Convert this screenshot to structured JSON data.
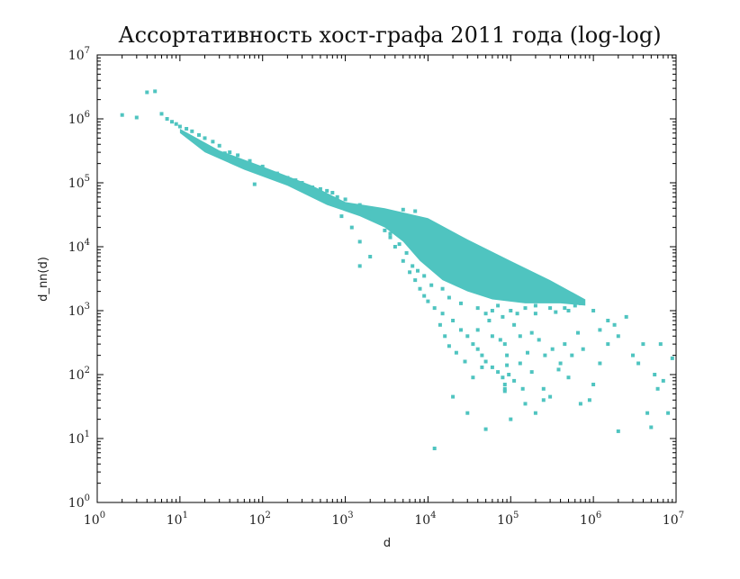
{
  "chart_data": {
    "type": "scatter",
    "title": "Ассортативность хост-графа 2011 года (log-log)",
    "xlabel": "d",
    "ylabel": "d_nn(d)",
    "xscale": "log",
    "yscale": "log",
    "xlim": [
      1,
      10000000
    ],
    "ylim": [
      1,
      10000000
    ],
    "grid": false,
    "x_ticks": [
      {
        "base": "10",
        "exp": "0",
        "value": 1
      },
      {
        "base": "10",
        "exp": "1",
        "value": 10
      },
      {
        "base": "10",
        "exp": "2",
        "value": 100
      },
      {
        "base": "10",
        "exp": "3",
        "value": 1000
      },
      {
        "base": "10",
        "exp": "4",
        "value": 10000
      },
      {
        "base": "10",
        "exp": "5",
        "value": 100000
      },
      {
        "base": "10",
        "exp": "6",
        "value": 1000000
      },
      {
        "base": "10",
        "exp": "7",
        "value": 10000000
      }
    ],
    "y_ticks": [
      {
        "base": "10",
        "exp": "0",
        "value": 1
      },
      {
        "base": "10",
        "exp": "1",
        "value": 10
      },
      {
        "base": "10",
        "exp": "2",
        "value": 100
      },
      {
        "base": "10",
        "exp": "3",
        "value": 1000
      },
      {
        "base": "10",
        "exp": "4",
        "value": 10000
      },
      {
        "base": "10",
        "exp": "5",
        "value": 100000
      },
      {
        "base": "10",
        "exp": "6",
        "value": 1000000
      },
      {
        "base": "10",
        "exp": "7",
        "value": 10000000
      }
    ],
    "color": "#4fc4c0",
    "dense_region": {
      "upper_edge": [
        [
          10,
          700000
        ],
        [
          30,
          320000
        ],
        [
          100,
          180000
        ],
        [
          400,
          90000
        ],
        [
          1000,
          50000
        ],
        [
          3000,
          40000
        ],
        [
          10000,
          28000
        ],
        [
          30000,
          13000
        ],
        [
          100000,
          6000
        ],
        [
          300000,
          3000
        ],
        [
          800000,
          1500
        ]
      ],
      "lower_edge": [
        [
          800000,
          1200
        ],
        [
          400000,
          1300
        ],
        [
          150000,
          1300
        ],
        [
          60000,
          1500
        ],
        [
          30000,
          2000
        ],
        [
          15000,
          3000
        ],
        [
          8000,
          6000
        ],
        [
          5000,
          12000
        ],
        [
          3000,
          20000
        ],
        [
          1500,
          30000
        ],
        [
          600,
          45000
        ],
        [
          200,
          90000
        ],
        [
          60,
          160000
        ],
        [
          20,
          300000
        ],
        [
          10,
          600000
        ]
      ]
    },
    "points": [
      [
        2,
        1150000
      ],
      [
        3,
        1050000
      ],
      [
        4,
        2600000
      ],
      [
        5,
        2700000
      ],
      [
        6,
        1200000
      ],
      [
        7,
        1000000
      ],
      [
        8,
        900000
      ],
      [
        9,
        830000
      ],
      [
        10,
        760000
      ],
      [
        12,
        700000
      ],
      [
        14,
        640000
      ],
      [
        17,
        560000
      ],
      [
        20,
        500000
      ],
      [
        25,
        440000
      ],
      [
        30,
        380000
      ],
      [
        40,
        300000
      ],
      [
        50,
        270000
      ],
      [
        70,
        220000
      ],
      [
        100,
        180000
      ],
      [
        150,
        140000
      ],
      [
        200,
        120000
      ],
      [
        300,
        100000
      ],
      [
        80,
        95000
      ],
      [
        500,
        80000
      ],
      [
        700,
        70000
      ],
      [
        1000,
        55000
      ],
      [
        1500,
        45000
      ],
      [
        2000,
        40000
      ],
      [
        900,
        30000
      ],
      [
        1200,
        20000
      ],
      [
        1500,
        12000
      ],
      [
        2000,
        7000
      ],
      [
        1500,
        5000
      ],
      [
        5000,
        38000
      ],
      [
        7000,
        36000
      ],
      [
        3000,
        18000
      ],
      [
        3500,
        14000
      ],
      [
        4000,
        10000
      ],
      [
        5000,
        6000
      ],
      [
        6000,
        4000
      ],
      [
        7000,
        3000
      ],
      [
        8000,
        2200
      ],
      [
        9000,
        1700
      ],
      [
        10000,
        1400
      ],
      [
        12000,
        1100
      ],
      [
        15000,
        900
      ],
      [
        20000,
        700
      ],
      [
        25000,
        500
      ],
      [
        30000,
        400
      ],
      [
        35000,
        300
      ],
      [
        40000,
        250
      ],
      [
        45000,
        200
      ],
      [
        50000,
        160
      ],
      [
        60000,
        130
      ],
      [
        70000,
        110
      ],
      [
        80000,
        90
      ],
      [
        85000,
        70
      ],
      [
        85000,
        60
      ],
      [
        85000,
        55
      ],
      [
        85000,
        300
      ],
      [
        90000,
        200
      ],
      [
        90000,
        140
      ],
      [
        95000,
        100
      ],
      [
        12000,
        7
      ],
      [
        20000,
        45
      ],
      [
        30000,
        25
      ],
      [
        50000,
        14
      ],
      [
        100000,
        20
      ],
      [
        150000,
        35
      ],
      [
        200000,
        25
      ],
      [
        250000,
        60
      ],
      [
        300000,
        45
      ],
      [
        400000,
        150
      ],
      [
        500000,
        90
      ],
      [
        700000,
        35
      ],
      [
        900000,
        40
      ],
      [
        1000000,
        70
      ],
      [
        1200000,
        150
      ],
      [
        1500000,
        300
      ],
      [
        2000000,
        400
      ],
      [
        2000000,
        13
      ],
      [
        3000000,
        200
      ],
      [
        4000000,
        300
      ],
      [
        4500000,
        25
      ],
      [
        5000000,
        15
      ],
      [
        6000000,
        60
      ],
      [
        6500000,
        300
      ],
      [
        7000000,
        80
      ],
      [
        8000000,
        25
      ],
      [
        9000000,
        180
      ],
      [
        5500000,
        100
      ],
      [
        2500000,
        800
      ],
      [
        1500000,
        700
      ],
      [
        1000000,
        1000
      ],
      [
        700000,
        1300
      ],
      [
        600000,
        1200
      ],
      [
        450000,
        1100
      ],
      [
        300000,
        1100
      ],
      [
        200000,
        1200
      ],
      [
        150000,
        1100
      ],
      [
        100000,
        1000
      ],
      [
        70000,
        1200
      ],
      [
        60000,
        1000
      ],
      [
        40000,
        1100
      ],
      [
        25000,
        1300
      ],
      [
        18000,
        1600
      ],
      [
        15000,
        2200
      ],
      [
        11000,
        2500
      ],
      [
        9000,
        3500
      ],
      [
        7500,
        4200
      ],
      [
        6500,
        5000
      ],
      [
        5500,
        8000
      ],
      [
        4500,
        11000
      ],
      [
        3500,
        16000
      ],
      [
        40000,
        500
      ],
      [
        55000,
        700
      ],
      [
        60000,
        400
      ],
      [
        75000,
        350
      ],
      [
        110000,
        600
      ],
      [
        130000,
        400
      ],
      [
        160000,
        220
      ],
      [
        180000,
        450
      ],
      [
        220000,
        350
      ],
      [
        260000,
        200
      ],
      [
        320000,
        250
      ],
      [
        380000,
        120
      ],
      [
        450000,
        300
      ],
      [
        550000,
        200
      ],
      [
        650000,
        450
      ],
      [
        750000,
        250
      ],
      [
        130000,
        150
      ],
      [
        110000,
        80
      ],
      [
        140000,
        60
      ],
      [
        250000,
        40
      ],
      [
        180000,
        110
      ],
      [
        35000,
        90
      ],
      [
        45000,
        130
      ],
      [
        28000,
        160
      ],
      [
        22000,
        220
      ],
      [
        18000,
        280
      ],
      [
        16000,
        400
      ],
      [
        14000,
        600
      ],
      [
        50000,
        900
      ],
      [
        80000,
        800
      ],
      [
        120000,
        900
      ],
      [
        200000,
        900
      ],
      [
        350000,
        950
      ],
      [
        500000,
        1000
      ],
      [
        1200000,
        500
      ],
      [
        1800000,
        600
      ],
      [
        3500000,
        150
      ],
      [
        60,
        200000
      ],
      [
        45,
        240000
      ],
      [
        35,
        290000
      ],
      [
        150,
        130000
      ],
      [
        250,
        110000
      ],
      [
        400,
        85000
      ],
      [
        600,
        75000
      ],
      [
        800,
        60000
      ]
    ]
  }
}
